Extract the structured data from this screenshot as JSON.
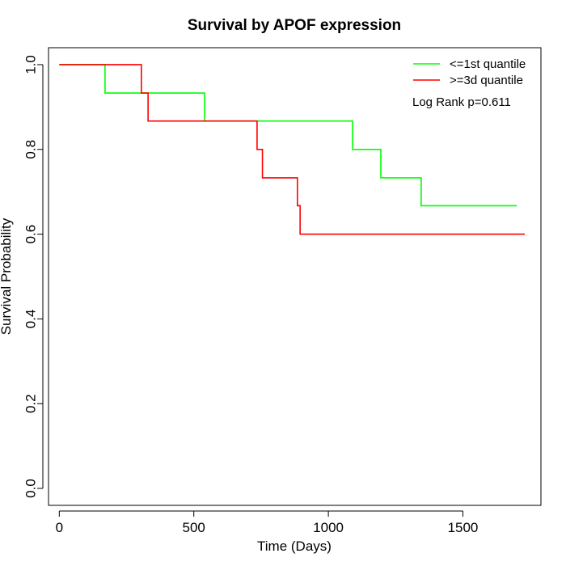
{
  "chart_data": {
    "type": "line",
    "step": true,
    "title": "Survival by APOF expression",
    "xlabel": "Time (Days)",
    "ylabel": "Survival Probability",
    "xlim": [
      -40,
      1790
    ],
    "ylim": [
      -0.04,
      1.04
    ],
    "x_ticks": [
      0,
      500,
      1000,
      1500
    ],
    "x_tick_labels": [
      "0",
      "500",
      "1000",
      "1500"
    ],
    "y_ticks": [
      0.0,
      0.2,
      0.4,
      0.6,
      0.8,
      1.0
    ],
    "y_tick_labels": [
      "0.0",
      "0.2",
      "0.4",
      "0.6",
      "0.8",
      "1.0"
    ],
    "grid": false,
    "legend_position": "top-right",
    "annotation": "Log Rank p=0.611",
    "series": [
      {
        "name": "<=1st quantile",
        "color": "#00FF00",
        "x": [
          0,
          170,
          540,
          1090,
          1195,
          1345,
          1700
        ],
        "y": [
          1.0,
          0.933,
          0.867,
          0.8,
          0.733,
          0.667,
          0.667
        ]
      },
      {
        "name": ">=3d quantile",
        "color": "#FF0000",
        "x": [
          0,
          305,
          330,
          735,
          755,
          885,
          895,
          1730
        ],
        "y": [
          1.0,
          0.933,
          0.867,
          0.8,
          0.733,
          0.667,
          0.6,
          0.6
        ]
      }
    ]
  }
}
